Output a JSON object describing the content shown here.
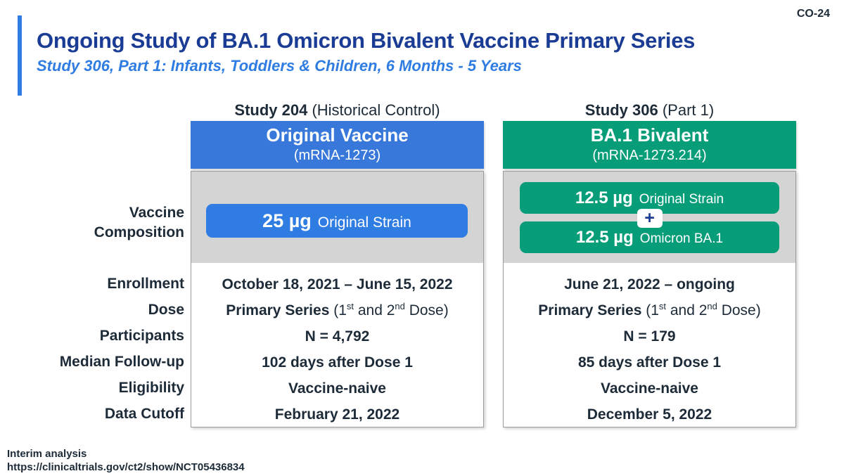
{
  "slide_code": "CO-24",
  "title": "Ongoing Study of BA.1 Omicron Bivalent Vaccine Primary Series",
  "subtitle": "Study 306, Part 1: Infants, Toddlers & Children, 6 Months - 5 Years",
  "colors": {
    "accent_blue": "#2f7ce2",
    "title_navy": "#1a3c94",
    "original_vaccine_blue": "#3878db",
    "bivalent_green": "#069d78",
    "composition_band_gray": "#d4d4d4",
    "text_dark": "#1d2b38"
  },
  "row_labels": {
    "composition_line1": "Vaccine",
    "composition_line2": "Composition",
    "enrollment": "Enrollment",
    "dose": "Dose",
    "participants": "Participants",
    "median_followup": "Median Follow-up",
    "eligibility": "Eligibility",
    "data_cutoff": "Data Cutoff"
  },
  "columns": [
    {
      "study_bold": "Study 204",
      "study_rest": " (Historical Control)",
      "box_title": "Original Vaccine",
      "box_subtitle": "(mRNA-1273)",
      "pills": [
        {
          "dose": "25 µg",
          "strain": "Original Strain"
        }
      ],
      "rows": {
        "enrollment": "October 18, 2021 – June 15, 2022",
        "dose": {
          "bold": "Primary Series",
          "pre": " (1",
          "sup1": "st",
          "mid": " and 2",
          "sup2": "nd",
          "post": " Dose)"
        },
        "participants": "N = 4,792",
        "median_followup": "102 days after Dose 1",
        "eligibility": "Vaccine-naive",
        "data_cutoff": "February 21, 2022"
      }
    },
    {
      "study_bold": "Study 306",
      "study_rest": " (Part 1)",
      "box_title": "BA.1 Bivalent",
      "box_subtitle": "(mRNA-1273.214)",
      "plus_sign": "+",
      "pills": [
        {
          "dose": "12.5 µg",
          "strain": "Original Strain"
        },
        {
          "dose": "12.5 µg",
          "strain": "Omicron BA.1"
        }
      ],
      "rows": {
        "enrollment": "June 21, 2022 – ongoing",
        "dose": {
          "bold": "Primary Series",
          "pre": " (1",
          "sup1": "st",
          "mid": " and 2",
          "sup2": "nd",
          "post": " Dose)"
        },
        "participants": "N = 179",
        "median_followup": "85 days after Dose 1",
        "eligibility": "Vaccine-naive",
        "data_cutoff": "December 5, 2022"
      }
    }
  ],
  "footer": {
    "line1": "Interim analysis",
    "line2": "https://clinicaltrials.gov/ct2/show/NCT05436834"
  }
}
